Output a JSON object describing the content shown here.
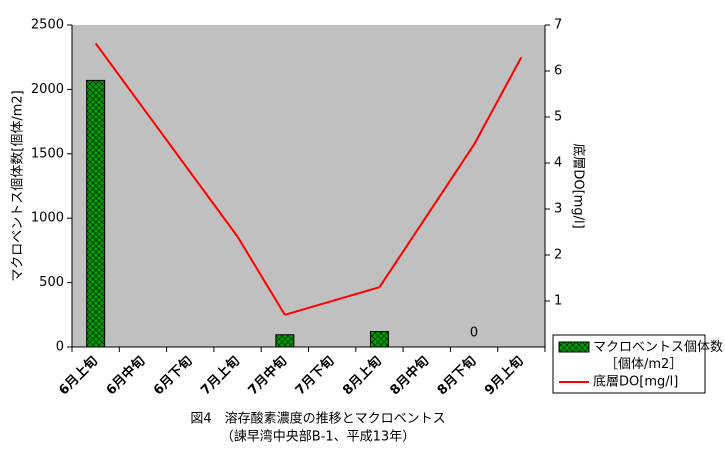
{
  "chart_data": {
    "type": "bar",
    "caption": [
      "図4　溶存酸素濃度の推移とマクロベントス",
      "（諫早湾中央部B-1、平成13年）"
    ],
    "y_label": "マクロベントス個体数[個体/m2]",
    "y2_label": "底層DO[mg/l]",
    "categories": [
      "6月上旬",
      "6月中旬",
      "6月下旬",
      "7月上旬",
      "7月中旬",
      "7月下旬",
      "8月上旬",
      "8月中旬",
      "8月下旬",
      "9月上旬"
    ],
    "series": [
      {
        "name": "マクロベントス個体数\n［個体/m2］",
        "type": "bar",
        "color": "#00a000",
        "values": [
          2070,
          null,
          null,
          null,
          95,
          null,
          120,
          null,
          0,
          null
        ],
        "value_labels": [
          null,
          null,
          null,
          null,
          null,
          null,
          null,
          null,
          "0",
          null
        ]
      },
      {
        "name": "底層DO[mg/l]",
        "type": "line",
        "axis": "y2",
        "color": "#ff0000",
        "values": [
          6.6,
          null,
          null,
          2.4,
          0.7,
          null,
          1.3,
          null,
          4.4,
          6.3
        ]
      }
    ],
    "ylim": [
      0,
      2500
    ],
    "yticks": [
      0,
      500,
      1000,
      1500,
      2000,
      2500
    ],
    "y2lim": [
      0,
      7
    ],
    "y2ticks": [
      1,
      2,
      3,
      4,
      5,
      6,
      7
    ],
    "plot_background": "#c0c0c0",
    "legend": "bottom-right"
  }
}
